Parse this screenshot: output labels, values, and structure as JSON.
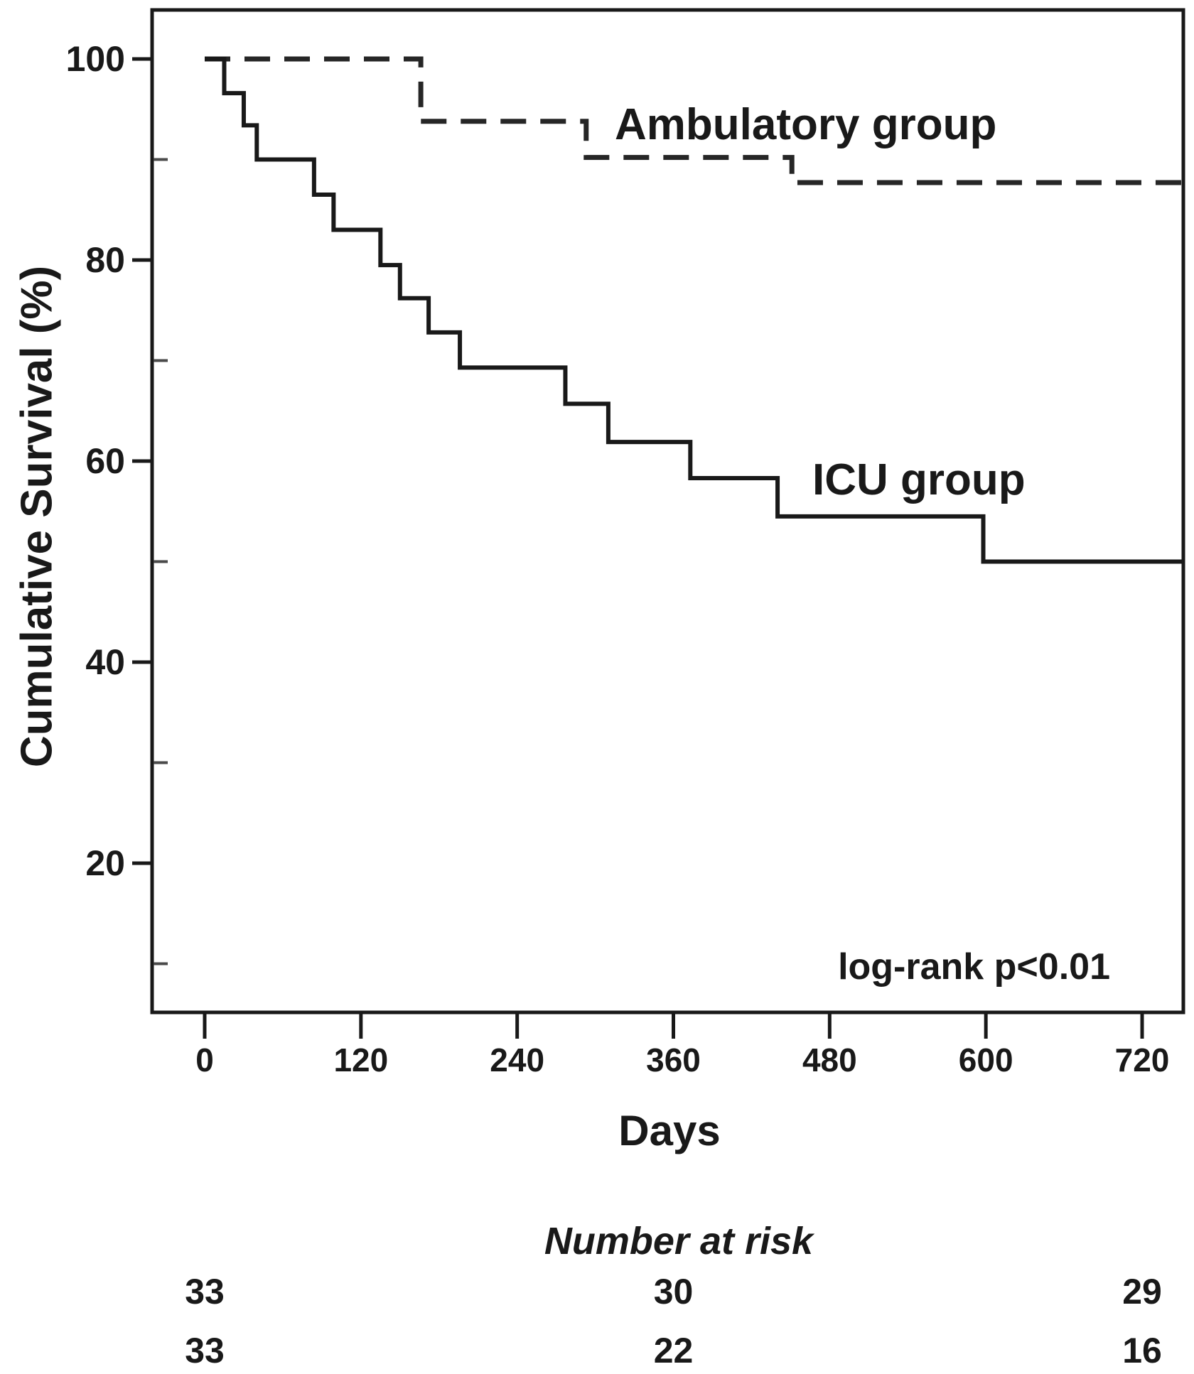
{
  "figure": {
    "y_axis_label": "Cumulative Survival (%)",
    "x_axis_label": "Days",
    "annotation": "log-rank p<0.01",
    "risk_table_title": "Number at risk",
    "curve_labels": {
      "ambulatory": "Ambulatory group",
      "icu": "ICU group"
    }
  },
  "chart_data": {
    "type": "line",
    "subtype": "kaplan-meier-step",
    "title": "",
    "xlabel": "Days",
    "ylabel": "Cumulative Survival (%)",
    "x_ticks": [
      0,
      120,
      240,
      360,
      480,
      600,
      720
    ],
    "y_ticks": [
      100,
      80,
      60,
      40,
      20
    ],
    "y_minor_ticks": [
      90,
      70,
      50,
      30,
      10
    ],
    "xlim": [
      -40,
      752
    ],
    "ylim": [
      5,
      105
    ],
    "grid": false,
    "legend_position": "inline-labels",
    "annotation": "log-rank p<0.01",
    "series": [
      {
        "name": "Ambulatory group",
        "style": "dashed",
        "steps": [
          [
            0,
            100
          ],
          [
            166,
            93.8
          ],
          [
            293,
            90.2
          ],
          [
            451,
            87.7
          ],
          [
            752,
            87.7
          ]
        ]
      },
      {
        "name": "ICU group",
        "style": "solid",
        "steps": [
          [
            0,
            100
          ],
          [
            15,
            96.6
          ],
          [
            30,
            93.4
          ],
          [
            40,
            90.0
          ],
          [
            84,
            86.5
          ],
          [
            99,
            83.0
          ],
          [
            135,
            79.5
          ],
          [
            150,
            76.2
          ],
          [
            172,
            72.8
          ],
          [
            196,
            69.3
          ],
          [
            277,
            65.7
          ],
          [
            310,
            61.9
          ],
          [
            373,
            58.3
          ],
          [
            440,
            54.5
          ],
          [
            598,
            50.0
          ],
          [
            752,
            50.0
          ]
        ]
      }
    ],
    "number_at_risk": {
      "title": "Number at risk",
      "days": [
        0,
        360,
        720
      ],
      "rows": [
        {
          "group": "Ambulatory group",
          "values": [
            33,
            30,
            29
          ]
        },
        {
          "group": "ICU group",
          "values": [
            33,
            22,
            16
          ]
        }
      ]
    }
  }
}
